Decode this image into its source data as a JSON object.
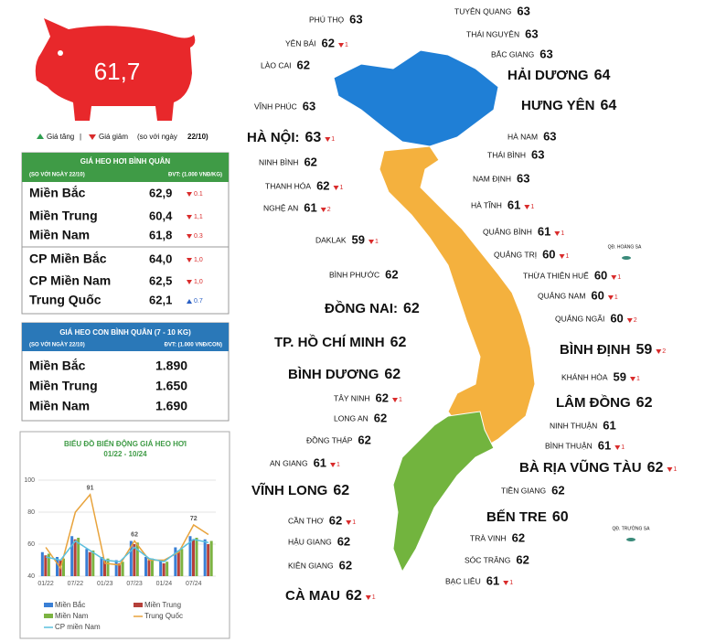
{
  "header": {
    "price": "61,7"
  },
  "legend": {
    "up": "Giá tăng",
    "down": "Giá giảm",
    "note": "(so với ngày",
    "date": "22/10)"
  },
  "table1": {
    "title": "GIÁ HEO HƠI BÌNH QUÂN",
    "subtitle": "(SO VỚI NGÀY 22/10)",
    "unit": "ĐVT: (1.000 VNĐ/KG)",
    "rows": [
      {
        "name": "Miền Bắc",
        "value": "62,9",
        "change": "0.1",
        "trend": "down"
      },
      {
        "name": "Miền Trung",
        "value": "60,4",
        "change": "1,1",
        "trend": "down"
      },
      {
        "name": "Miền Nam",
        "value": "61,8",
        "change": "0.3",
        "trend": "down"
      },
      {
        "name": "CP Miền Bắc",
        "value": "64,0",
        "change": "1,0",
        "trend": "down"
      },
      {
        "name": "CP Miền Nam",
        "value": "62,5",
        "change": "1,0",
        "trend": "down"
      },
      {
        "name": "Trung Quốc",
        "value": "62,1",
        "change": "0.7",
        "trend": "up"
      }
    ]
  },
  "table2": {
    "title": "GIÁ HEO CON BÌNH QUÂN (7 - 10 KG)",
    "subtitle": "(SO VỚI NGÀY 22/10)",
    "unit": "ĐVT: (1.000 VNĐ/CON)",
    "rows": [
      {
        "name": "Miền Bắc",
        "value": "1.890"
      },
      {
        "name": "Miền Trung",
        "value": "1.650"
      },
      {
        "name": "Miền Nam",
        "value": "1.690"
      }
    ]
  },
  "chart_data": {
    "type": "combo",
    "title": "BIỂU ĐỒ BIẾN ĐỘNG GIÁ HEO HƠI",
    "subtitle": "01/22 - 10/24",
    "categories": [
      "01/22",
      null,
      "07/22",
      null,
      "01/23",
      null,
      "07/23",
      null,
      "01/24",
      null,
      "07/24",
      null
    ],
    "series": [
      {
        "name": "Miền Bắc",
        "color": "#3a7fd5",
        "kind": "bar",
        "values": [
          55,
          52,
          65,
          57,
          52,
          50,
          62,
          52,
          50,
          58,
          65,
          63
        ]
      },
      {
        "name": "Miền Trung",
        "color": "#b5403a",
        "kind": "bar",
        "values": [
          53,
          50,
          63,
          55,
          50,
          48,
          60,
          50,
          48,
          56,
          63,
          60
        ]
      },
      {
        "name": "Miền Nam",
        "color": "#7cb342",
        "kind": "bar",
        "values": [
          54,
          51,
          64,
          56,
          51,
          49,
          61,
          51,
          49,
          57,
          64,
          62
        ]
      },
      {
        "name": "Trung Quốc",
        "color": "#e8a33c",
        "kind": "line",
        "values": [
          58,
          45,
          80,
          91,
          48,
          47,
          62,
          50,
          50,
          55,
          72,
          66
        ]
      },
      {
        "name": "CP miền Nam",
        "color": "#5bc0de",
        "kind": "line",
        "values": [
          52,
          50,
          62,
          56,
          50,
          49,
          58,
          51,
          49,
          56,
          63,
          61
        ]
      }
    ],
    "annotations": [
      "91",
      "62",
      "72"
    ],
    "ylim": [
      40,
      100
    ],
    "yticks": [
      40,
      60,
      80,
      100
    ]
  },
  "islands": [
    "QĐ. HOÀNG SA",
    "QĐ. TRƯỜNG SA"
  ],
  "provinces": [
    {
      "name": "PHÚ THỌ",
      "price": "63"
    },
    {
      "name": "YÊN BÁI",
      "price": "62",
      "change": "1",
      "trend": "down"
    },
    {
      "name": "LÀO CAI",
      "price": "62"
    },
    {
      "name": "VĨNH PHÚC",
      "price": "63"
    },
    {
      "name": "HÀ NỘI:",
      "price": "63",
      "change": "1",
      "trend": "down"
    },
    {
      "name": "NINH BÌNH",
      "price": "62"
    },
    {
      "name": "THANH HÓA",
      "price": "62",
      "change": "1",
      "trend": "down"
    },
    {
      "name": "NGHỆ AN",
      "price": "61",
      "change": "2",
      "trend": "down"
    },
    {
      "name": "DAKLAK",
      "price": "59",
      "change": "1",
      "trend": "down"
    },
    {
      "name": "BÌNH PHƯỚC",
      "price": "62"
    },
    {
      "name": "ĐỒNG NAI:",
      "price": "62"
    },
    {
      "name": "TP. HỒ CHÍ MINH",
      "price": "62"
    },
    {
      "name": "BÌNH DƯƠNG",
      "price": "62"
    },
    {
      "name": "TÂY NINH",
      "price": "62",
      "change": "1",
      "trend": "down"
    },
    {
      "name": "LONG AN",
      "price": "62"
    },
    {
      "name": "ĐỒNG THÁP",
      "price": "62"
    },
    {
      "name": "AN GIANG",
      "price": "61",
      "change": "1",
      "trend": "down"
    },
    {
      "name": "VĨNH LONG",
      "price": "62"
    },
    {
      "name": "CẦN THƠ",
      "price": "62",
      "change": "1",
      "trend": "down"
    },
    {
      "name": "HẬU GIANG",
      "price": "62"
    },
    {
      "name": "KIÊN GIANG",
      "price": "62"
    },
    {
      "name": "CÀ MAU",
      "price": "62",
      "change": "1",
      "trend": "down"
    },
    {
      "name": "TUYÊN QUANG",
      "price": "63"
    },
    {
      "name": "THÁI NGUYÊN",
      "price": "63"
    },
    {
      "name": "BẮC GIANG",
      "price": "63"
    },
    {
      "name": "HẢI DƯƠNG",
      "price": "64"
    },
    {
      "name": "HƯNG YÊN",
      "price": "64"
    },
    {
      "name": "HÀ NAM",
      "price": "63"
    },
    {
      "name": "THÁI BÌNH",
      "price": "63"
    },
    {
      "name": "NAM ĐỊNH",
      "price": "63"
    },
    {
      "name": "HÀ TĨNH",
      "price": "61",
      "change": "1",
      "trend": "down"
    },
    {
      "name": "QUẢNG BÌNH",
      "price": "61",
      "change": "1",
      "trend": "down"
    },
    {
      "name": "QUẢNG TRỊ",
      "price": "60",
      "change": "1",
      "trend": "down"
    },
    {
      "name": "THỪA THIÊN HUẾ",
      "price": "60",
      "change": "1",
      "trend": "down"
    },
    {
      "name": "QUẢNG NAM",
      "price": "60",
      "change": "1",
      "trend": "down"
    },
    {
      "name": "QUẢNG NGÃI",
      "price": "60",
      "change": "2",
      "trend": "down"
    },
    {
      "name": "BÌNH ĐỊNH",
      "price": "59",
      "change": "2",
      "trend": "down"
    },
    {
      "name": "KHÁNH HÒA",
      "price": "59",
      "change": "1",
      "trend": "down"
    },
    {
      "name": "LÂM ĐỒNG",
      "price": "62"
    },
    {
      "name": "NINH THUẬN",
      "price": "61"
    },
    {
      "name": "BÌNH THUẬN",
      "price": "61",
      "change": "1",
      "trend": "down"
    },
    {
      "name": "BÀ RỊA VŨNG TÀU",
      "price": "62",
      "change": "1",
      "trend": "down"
    },
    {
      "name": "TIỀN GIANG",
      "price": "62"
    },
    {
      "name": "BẾN TRE",
      "price": "60"
    },
    {
      "name": "TRÀ VINH",
      "price": "62"
    },
    {
      "name": "SÓC TRĂNG",
      "price": "62"
    },
    {
      "name": "BẠC LIÊU",
      "price": "61",
      "change": "1",
      "trend": "down"
    }
  ]
}
